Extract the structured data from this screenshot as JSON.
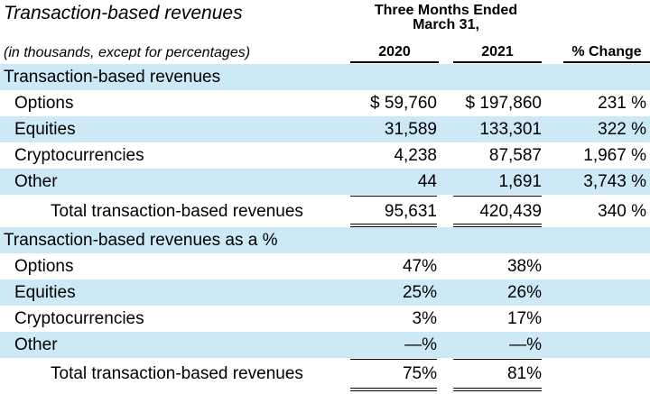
{
  "header": {
    "title": "Transaction-based revenues",
    "period_line1": "Three Months Ended",
    "period_line2": "March 31,",
    "units_note": "(in thousands, except for percentages)",
    "col_2020": "2020",
    "col_2021": "2021",
    "col_change": "% Change"
  },
  "section1": {
    "heading": "Transaction-based revenues",
    "rows": [
      {
        "label": "Options",
        "v2020": "$ 59,760",
        "v2021": "$ 197,860",
        "change": "231 %"
      },
      {
        "label": "Equities",
        "v2020": "31,589",
        "v2021": "133,301",
        "change": "322 %"
      },
      {
        "label": "Cryptocurrencies",
        "v2020": "4,238",
        "v2021": "87,587",
        "change": "1,967 %"
      },
      {
        "label": "Other",
        "v2020": "44",
        "v2021": "1,691",
        "change": "3,743 %"
      }
    ],
    "total": {
      "label": "Total transaction-based revenues",
      "v2020": "95,631",
      "v2021": "420,439",
      "change": "340 %"
    }
  },
  "section2": {
    "heading": "Transaction-based revenues as a %",
    "rows": [
      {
        "label": "Options",
        "v2020": "47%",
        "v2021": "38%"
      },
      {
        "label": "Equities",
        "v2020": "25%",
        "v2021": "26%"
      },
      {
        "label": "Cryptocurrencies",
        "v2020": "3%",
        "v2021": "17%"
      },
      {
        "label": "Other",
        "v2020": "—%",
        "v2021": "—%"
      }
    ],
    "total": {
      "label": "Total transaction-based revenues",
      "v2020": "75%",
      "v2021": "81%"
    }
  }
}
